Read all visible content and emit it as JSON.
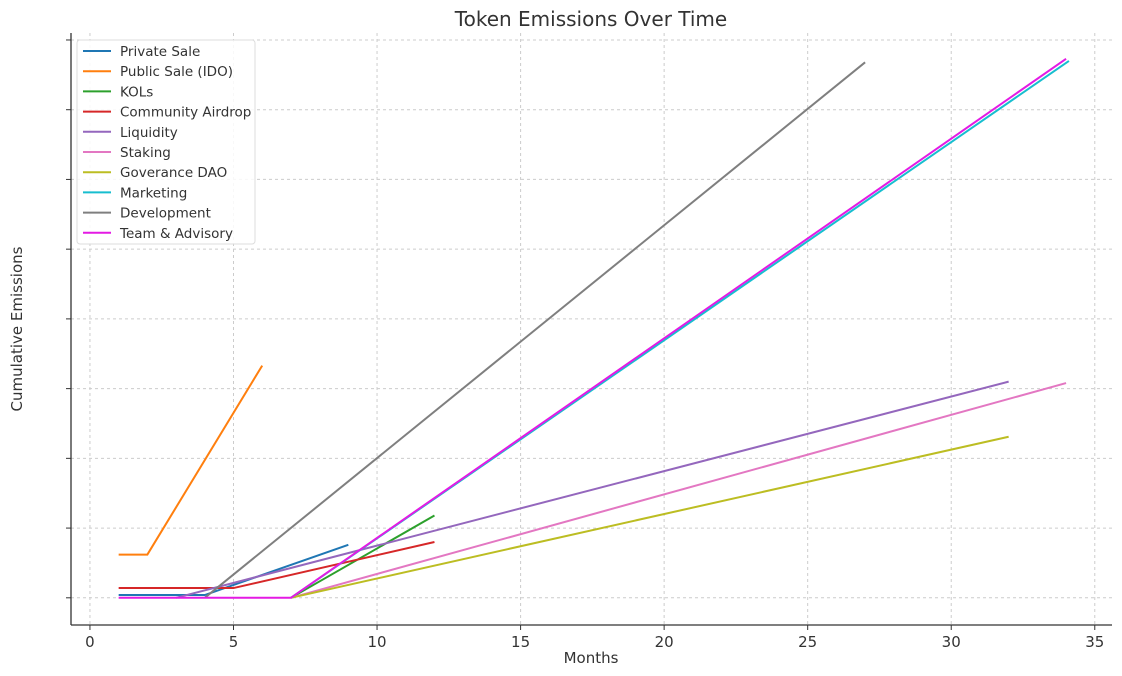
{
  "chart_data": {
    "type": "line",
    "title": "Token Emissions Over Time",
    "xlabel": "Months",
    "ylabel": "Cumulative Emissions",
    "xlim": [
      -0.66,
      35.6
    ],
    "ylim": [
      -0.39,
      8.1
    ],
    "xticks": [
      0,
      5,
      10,
      15,
      20,
      25,
      30,
      35
    ],
    "yticks": [
      0,
      1,
      2,
      3,
      4,
      5,
      6,
      7,
      8
    ],
    "ytick_labels_shown": false,
    "grid": true,
    "legend_position": "top-left",
    "series": [
      {
        "name": "Private Sale",
        "color": "#1f77b4",
        "x": [
          1,
          4,
          9
        ],
        "y": [
          0.04,
          0.04,
          0.76
        ]
      },
      {
        "name": "Public Sale (IDO)",
        "color": "#ff7f0e",
        "x": [
          1,
          2,
          6
        ],
        "y": [
          0.62,
          0.62,
          3.33
        ]
      },
      {
        "name": "KOLs",
        "color": "#2ca02c",
        "x": [
          7,
          12
        ],
        "y": [
          0,
          1.18
        ]
      },
      {
        "name": "Community Airdrop",
        "color": "#d62728",
        "x": [
          1,
          5,
          12
        ],
        "y": [
          0.14,
          0.14,
          0.8
        ]
      },
      {
        "name": "Liquidity",
        "color": "#9467bd",
        "x": [
          3,
          32
        ],
        "y": [
          0,
          3.1
        ]
      },
      {
        "name": "Staking",
        "color": "#e377c2",
        "x": [
          7,
          34
        ],
        "y": [
          0,
          3.08
        ]
      },
      {
        "name": "Goverance DAO",
        "color": "#bcbd22",
        "x": [
          7,
          32
        ],
        "y": [
          0,
          2.31
        ]
      },
      {
        "name": "Marketing",
        "color": "#17becf",
        "x": [
          7,
          34.1
        ],
        "y": [
          0,
          7.7
        ]
      },
      {
        "name": "Development",
        "color": "#7f7f7f",
        "x": [
          4,
          27
        ],
        "y": [
          0,
          7.68
        ]
      },
      {
        "name": "Team & Advisory",
        "color": "#e41ae4",
        "x": [
          1,
          7,
          34
        ],
        "y": [
          0,
          0,
          7.73
        ]
      }
    ]
  }
}
